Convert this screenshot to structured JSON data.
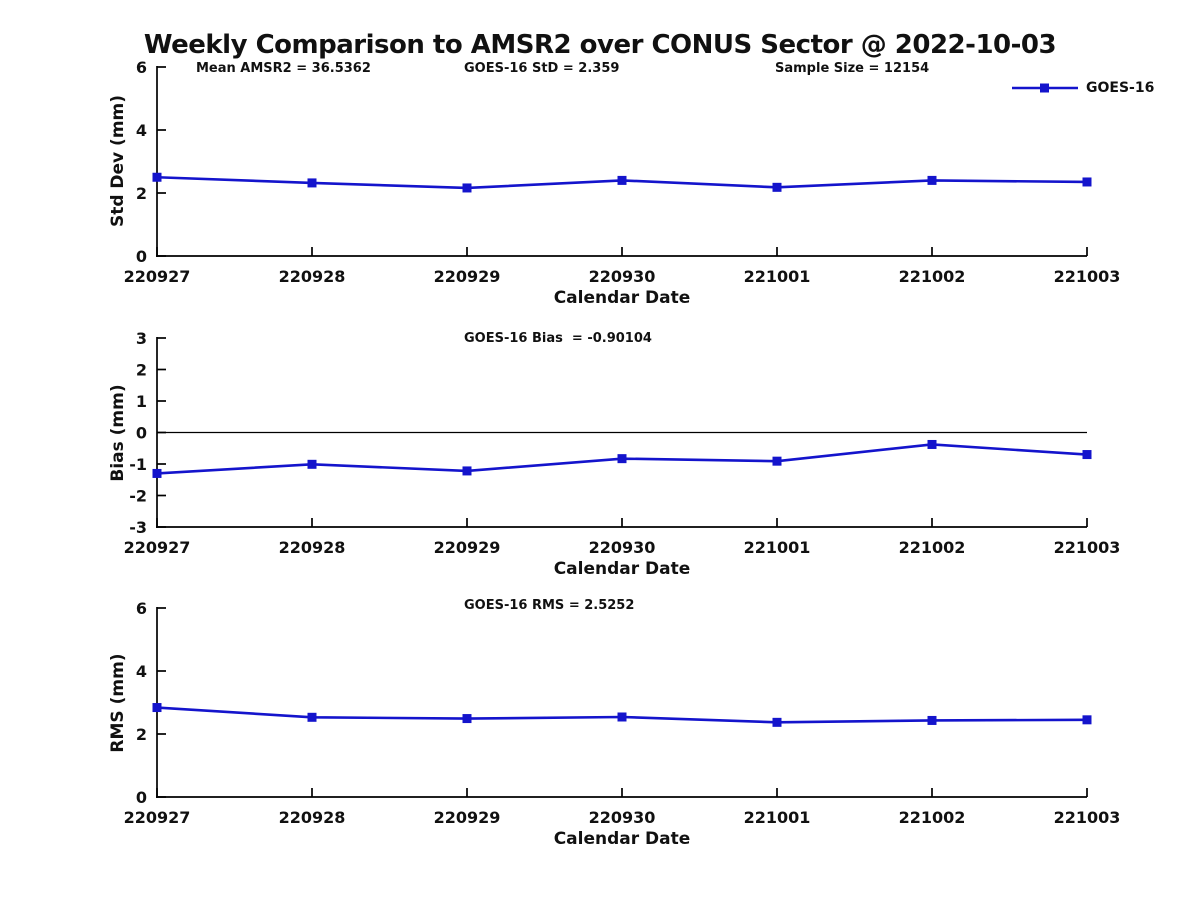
{
  "figure": {
    "title": "Weekly Comparison to AMSR2 over CONUS Sector @ 2022-10-03",
    "legend_label": "GOES-16",
    "colors": {
      "line": "#1414cc",
      "axis": "#000000",
      "text": "#111111"
    }
  },
  "chart_data": [
    {
      "type": "line",
      "categories": [
        "220927",
        "220928",
        "220929",
        "220930",
        "221001",
        "221002",
        "221003"
      ],
      "series": [
        {
          "name": "GOES-16",
          "values": [
            2.5,
            2.32,
            2.16,
            2.4,
            2.18,
            2.4,
            2.35
          ]
        }
      ],
      "annotations": [
        "Mean AMSR2 = 36.5362",
        "GOES-16 StD = 2.359",
        "Sample Size = 12154"
      ],
      "xlabel": "Calendar Date",
      "ylabel": "Std Dev (mm)",
      "ylim": [
        0,
        6
      ],
      "yticks": [
        0,
        2,
        4,
        6
      ],
      "zero_line": false,
      "legend_position": "top-right",
      "grid": false,
      "marker": "square"
    },
    {
      "type": "line",
      "categories": [
        "220927",
        "220928",
        "220929",
        "220930",
        "221001",
        "221002",
        "221003"
      ],
      "series": [
        {
          "name": "GOES-16",
          "values": [
            -1.3,
            -1.01,
            -1.22,
            -0.83,
            -0.91,
            -0.38,
            -0.7
          ]
        }
      ],
      "annotations": [
        "GOES-16 Bias  = -0.90104"
      ],
      "xlabel": "Calendar Date",
      "ylabel": "Bias (mm)",
      "ylim": [
        -3,
        3
      ],
      "yticks": [
        -3,
        -2,
        -1,
        0,
        1,
        2,
        3
      ],
      "zero_line": true,
      "grid": false,
      "marker": "square"
    },
    {
      "type": "line",
      "categories": [
        "220927",
        "220928",
        "220929",
        "220930",
        "221001",
        "221002",
        "221003"
      ],
      "series": [
        {
          "name": "GOES-16",
          "values": [
            2.84,
            2.53,
            2.49,
            2.54,
            2.37,
            2.43,
            2.45
          ]
        }
      ],
      "annotations": [
        "GOES-16 RMS = 2.5252"
      ],
      "xlabel": "Calendar Date",
      "ylabel": "RMS (mm)",
      "ylim": [
        0,
        6
      ],
      "yticks": [
        0,
        2,
        4,
        6
      ],
      "zero_line": false,
      "grid": false,
      "marker": "square"
    }
  ]
}
